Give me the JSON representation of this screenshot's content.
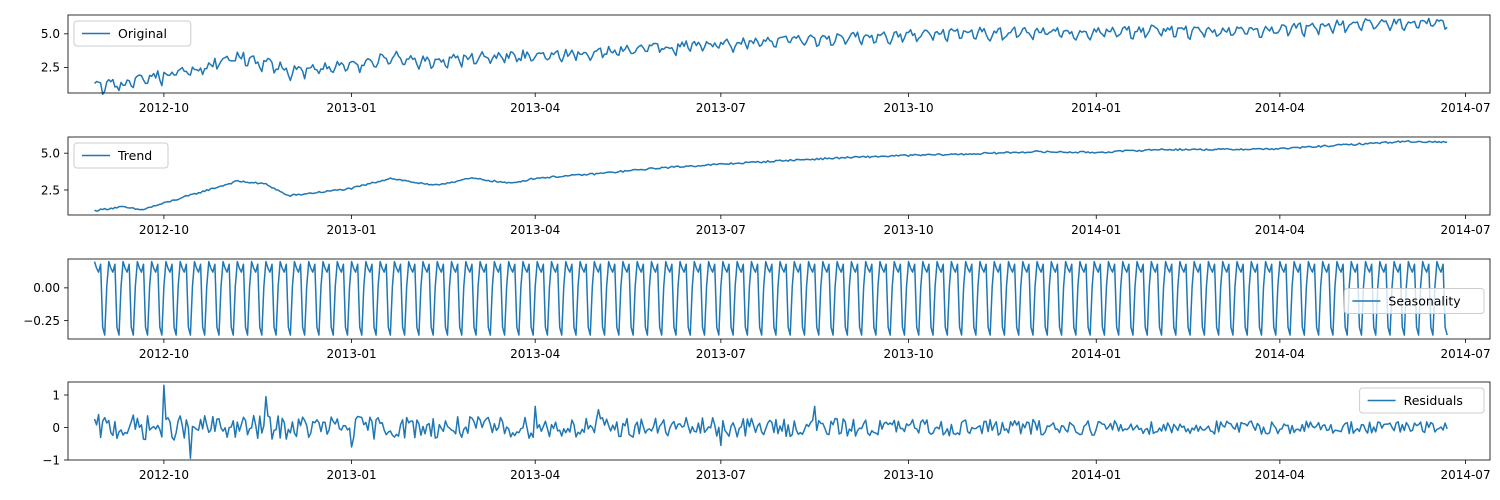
{
  "chart_data": [
    {
      "type": "line",
      "series": [
        {
          "name": "Original",
          "color": "#1f77b4",
          "kind": "original"
        }
      ],
      "x_start": "2012-08-28",
      "x_end": "2014-06-22",
      "xlim": [
        "2012-08-15",
        "2014-07-13"
      ],
      "ylim": [
        0.6,
        6.4
      ],
      "yticks": [
        2.5,
        5.0
      ],
      "ytick_labels": [
        "2.5",
        "5.0"
      ],
      "xticks": [
        "2012-10-01",
        "2013-01-01",
        "2013-04-01",
        "2013-07-01",
        "2013-10-01",
        "2014-01-01",
        "2014-04-01",
        "2014-07-01"
      ],
      "xtick_labels": [
        "2012-10",
        "2013-01",
        "2013-04",
        "2013-07",
        "2013-10",
        "2014-01",
        "2014-04",
        "2014-07"
      ],
      "trend_anchors": [
        [
          "2012-08-28",
          1.0
        ],
        [
          "2012-09-10",
          1.2
        ],
        [
          "2012-10-01",
          1.8
        ],
        [
          "2012-10-25",
          2.6
        ],
        [
          "2012-11-06",
          3.2
        ],
        [
          "2012-11-20",
          2.8
        ],
        [
          "2012-12-01",
          2.2
        ],
        [
          "2013-01-01",
          2.6
        ],
        [
          "2013-01-20",
          3.3
        ],
        [
          "2013-02-10",
          2.8
        ],
        [
          "2013-03-01",
          3.2
        ],
        [
          "2013-04-01",
          3.3
        ],
        [
          "2013-05-01",
          3.6
        ],
        [
          "2013-06-01",
          4.0
        ],
        [
          "2013-07-01",
          4.2
        ],
        [
          "2013-08-01",
          4.5
        ],
        [
          "2013-09-01",
          4.7
        ],
        [
          "2013-10-01",
          4.9
        ],
        [
          "2013-11-01",
          5.0
        ],
        [
          "2013-12-01",
          5.1
        ],
        [
          "2014-01-01",
          5.1
        ],
        [
          "2014-02-01",
          5.2
        ],
        [
          "2014-03-01",
          5.2
        ],
        [
          "2014-04-01",
          5.3
        ],
        [
          "2014-05-01",
          5.6
        ],
        [
          "2014-06-01",
          5.8
        ],
        [
          "2014-06-22",
          5.8
        ]
      ],
      "residual_amplitude": 0.35,
      "seasonal_pattern": [
        0.2,
        0.15,
        0.12,
        0.18,
        -0.3,
        -0.36,
        0.01
      ],
      "legend": "upper left"
    },
    {
      "type": "line",
      "series": [
        {
          "name": "Trend",
          "color": "#1f77b4",
          "kind": "trend"
        }
      ],
      "x_start": "2012-08-28",
      "x_end": "2014-06-22",
      "xlim": [
        "2012-08-15",
        "2014-07-13"
      ],
      "ylim": [
        0.8,
        6.1
      ],
      "yticks": [
        2.5,
        5.0
      ],
      "ytick_labels": [
        "2.5",
        "5.0"
      ],
      "xticks": [
        "2012-10-01",
        "2013-01-01",
        "2013-04-01",
        "2013-07-01",
        "2013-10-01",
        "2014-01-01",
        "2014-04-01",
        "2014-07-01"
      ],
      "xtick_labels": [
        "2012-10",
        "2013-01",
        "2013-04",
        "2013-07",
        "2013-10",
        "2014-01",
        "2014-04",
        "2014-07"
      ],
      "trend_anchors": [
        [
          "2012-08-28",
          1.1
        ],
        [
          "2012-09-10",
          1.35
        ],
        [
          "2012-09-20",
          1.15
        ],
        [
          "2012-10-01",
          1.6
        ],
        [
          "2012-10-25",
          2.6
        ],
        [
          "2012-11-06",
          3.1
        ],
        [
          "2012-11-20",
          2.9
        ],
        [
          "2012-12-01",
          2.1
        ],
        [
          "2013-01-01",
          2.6
        ],
        [
          "2013-01-20",
          3.3
        ],
        [
          "2013-02-10",
          2.8
        ],
        [
          "2013-03-01",
          3.3
        ],
        [
          "2013-03-20",
          2.95
        ],
        [
          "2013-04-01",
          3.3
        ],
        [
          "2013-05-01",
          3.6
        ],
        [
          "2013-06-01",
          4.0
        ],
        [
          "2013-07-01",
          4.25
        ],
        [
          "2013-08-01",
          4.5
        ],
        [
          "2013-09-01",
          4.7
        ],
        [
          "2013-10-01",
          4.85
        ],
        [
          "2013-11-01",
          4.95
        ],
        [
          "2013-12-01",
          5.1
        ],
        [
          "2014-01-01",
          5.05
        ],
        [
          "2014-02-01",
          5.25
        ],
        [
          "2014-03-01",
          5.25
        ],
        [
          "2014-04-01",
          5.3
        ],
        [
          "2014-05-01",
          5.55
        ],
        [
          "2014-06-01",
          5.8
        ],
        [
          "2014-06-22",
          5.75
        ]
      ],
      "legend": "upper left"
    },
    {
      "type": "line",
      "series": [
        {
          "name": "Seasonality",
          "color": "#1f77b4",
          "kind": "seasonal"
        }
      ],
      "x_start": "2012-08-28",
      "x_end": "2014-06-22",
      "xlim": [
        "2012-08-15",
        "2014-07-13"
      ],
      "ylim": [
        -0.39,
        0.22
      ],
      "yticks": [
        -0.25,
        0.0
      ],
      "ytick_labels": [
        "−0.25",
        "0.00"
      ],
      "xticks": [
        "2012-10-01",
        "2013-01-01",
        "2013-04-01",
        "2013-07-01",
        "2013-10-01",
        "2014-01-01",
        "2014-04-01",
        "2014-07-01"
      ],
      "xtick_labels": [
        "2012-10",
        "2013-01",
        "2013-04",
        "2013-07",
        "2013-10",
        "2014-01",
        "2014-04",
        "2014-07"
      ],
      "seasonal_pattern": [
        0.2,
        0.15,
        0.12,
        0.18,
        -0.3,
        -0.36,
        0.01
      ],
      "legend": "center right"
    },
    {
      "type": "line",
      "series": [
        {
          "name": "Residuals",
          "color": "#1f77b4",
          "kind": "residual"
        }
      ],
      "x_start": "2012-08-28",
      "x_end": "2014-06-22",
      "xlim": [
        "2012-08-15",
        "2014-07-13"
      ],
      "ylim": [
        -1.0,
        1.4
      ],
      "yticks": [
        -1,
        0,
        1
      ],
      "ytick_labels": [
        "−1",
        "0",
        "1"
      ],
      "xticks": [
        "2012-10-01",
        "2013-01-01",
        "2013-04-01",
        "2013-07-01",
        "2013-10-01",
        "2014-01-01",
        "2014-04-01",
        "2014-07-01"
      ],
      "xtick_labels": [
        "2012-10",
        "2013-01",
        "2013-04",
        "2013-07",
        "2013-10",
        "2014-01",
        "2014-04",
        "2014-07"
      ],
      "residual_amplitude": 0.4,
      "residual_spikes": [
        [
          "2012-10-01",
          1.3
        ],
        [
          "2012-10-14",
          -0.95
        ],
        [
          "2012-11-20",
          0.95
        ],
        [
          "2013-01-01",
          -0.6
        ],
        [
          "2013-04-01",
          0.65
        ],
        [
          "2013-07-01",
          -0.55
        ],
        [
          "2013-08-16",
          0.65
        ],
        [
          "2013-05-02",
          0.55
        ]
      ],
      "legend": "upper right"
    }
  ]
}
